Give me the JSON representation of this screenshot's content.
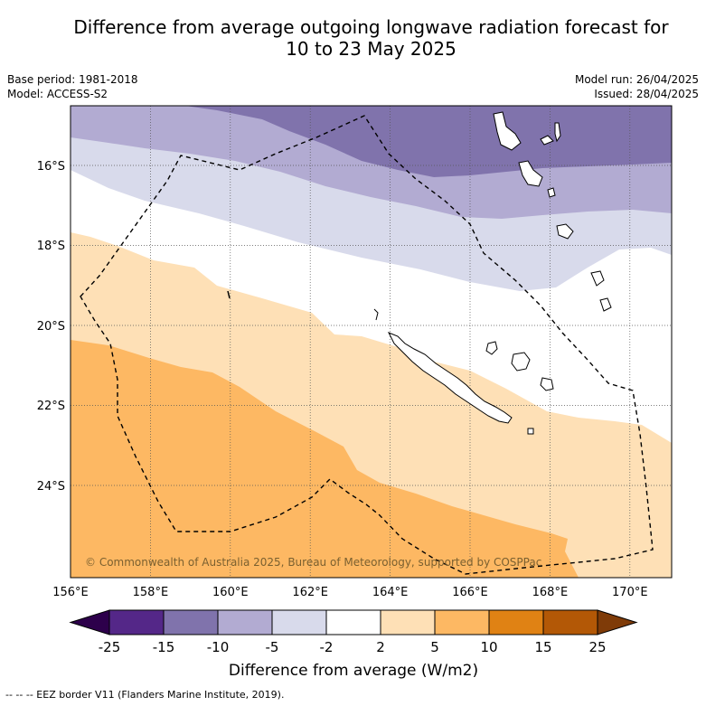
{
  "title_line1": "Difference from average outgoing longwave radiation forecast for",
  "title_line2": "10 to 23 May 2025",
  "base_period": "Base period: 1981-2018",
  "model": "Model: ACCESS-S2",
  "model_run": "Model run: 26/04/2025",
  "issued": "Issued: 28/04/2025",
  "copyright": "© Commonwealth of Australia 2025, Bureau of Meteorology, supported by COSPPac",
  "footer_note": "-- -- -- EEZ border V11 (Flanders Marine Institute, 2019).",
  "colorbar": {
    "label": "Difference from average (W/m2)",
    "ticks": [
      "-25",
      "-15",
      "-10",
      "-5",
      "-2",
      "2",
      "5",
      "10",
      "15",
      "25"
    ],
    "colors": [
      "#2d004b",
      "#542788",
      "#8073ac",
      "#b2abd2",
      "#d8daeb",
      "#ffffff",
      "#fee0b6",
      "#fdb863",
      "#e08214",
      "#b35806",
      "#7f3b08"
    ]
  },
  "chart_data": {
    "type": "heatmap",
    "x_axis": {
      "ticks": [
        "156°E",
        "158°E",
        "160°E",
        "162°E",
        "164°E",
        "166°E",
        "168°E",
        "170°E"
      ],
      "range": [
        156,
        171
      ]
    },
    "y_axis": {
      "ticks": [
        "16°S",
        "18°S",
        "20°S",
        "22°S",
        "24°S"
      ],
      "range": [
        -26.3,
        -14.6
      ]
    },
    "grid": true,
    "bands": [
      {
        "range": "-10 to -5",
        "location": "north-east"
      },
      {
        "range": "-5 to -2",
        "location": "north"
      },
      {
        "range": "-2 to 2",
        "location": "central"
      },
      {
        "range": "2 to 5",
        "location": "central-south"
      },
      {
        "range": "5 to 10",
        "location": "south-west"
      }
    ]
  }
}
